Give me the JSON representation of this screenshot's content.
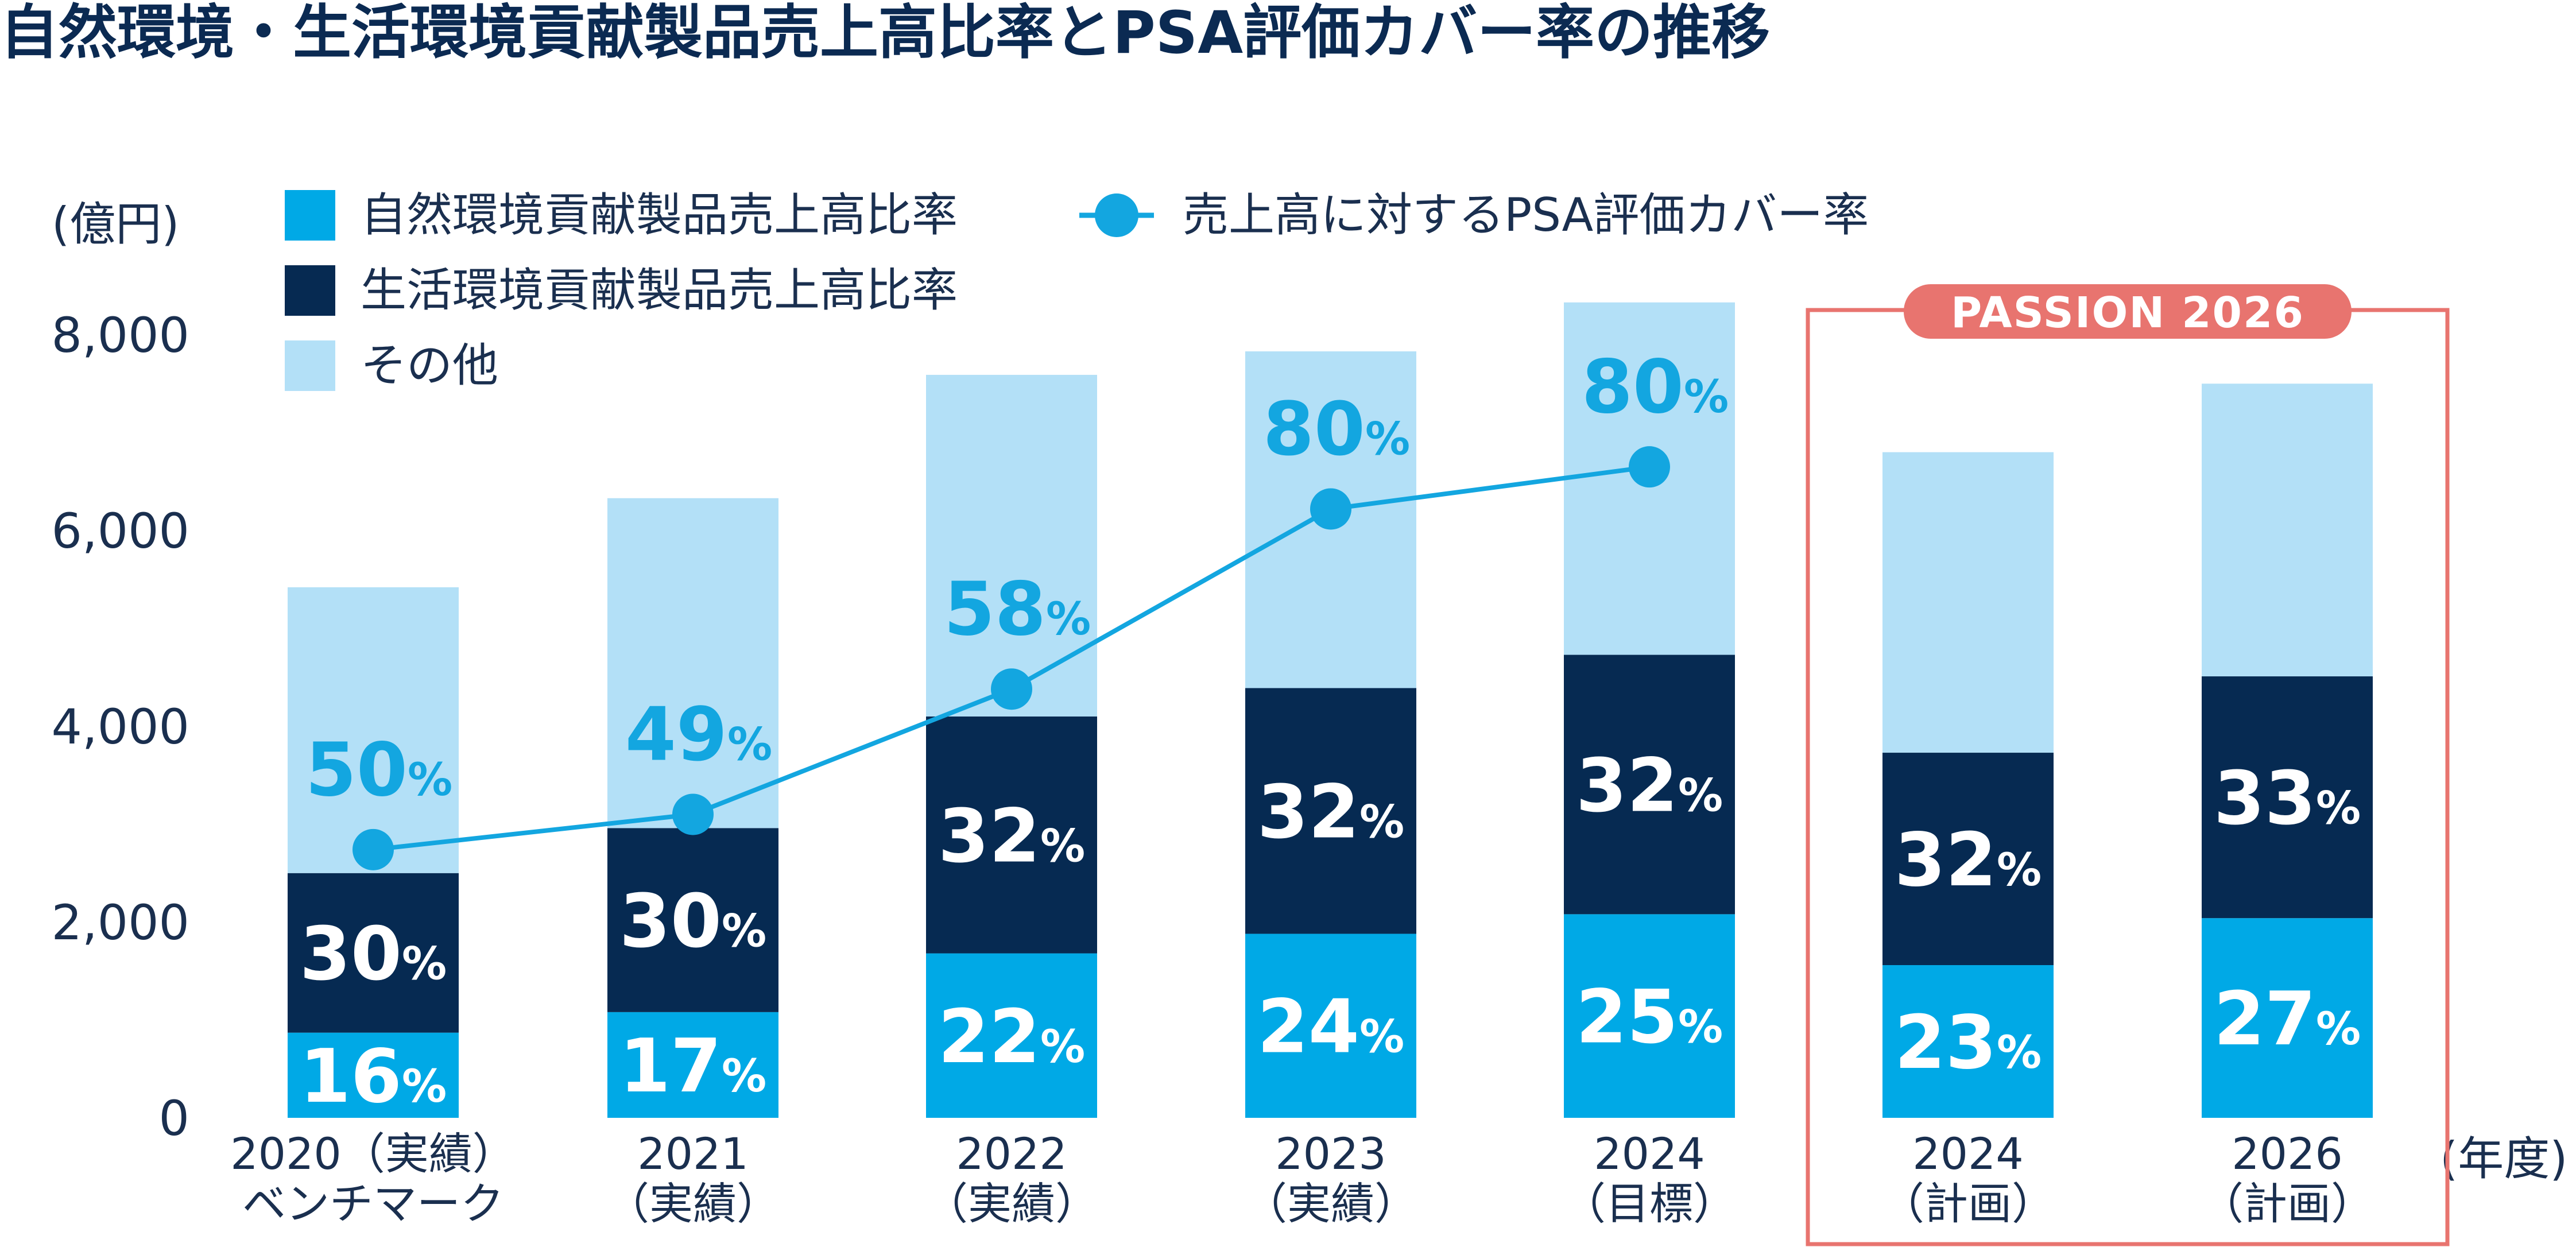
{
  "title": "自然環境・生活環境貢献製品売上高比率とPSA評価カバー率の推移",
  "colors": {
    "natural": "#00a9e6",
    "living": "#062a52",
    "other": "#b3e0f7",
    "line": "#13a6e0",
    "highlight": "#e8746f",
    "text": "#1a2f4f"
  },
  "chart_data": {
    "type": "bar",
    "stacked": true,
    "y_unit": "(億円)",
    "x_unit": "(年度)",
    "ylim": [
      0,
      8000
    ],
    "yticks": [
      "0",
      "2,000",
      "4,000",
      "6,000",
      "8,000"
    ],
    "ytick_values": [
      0,
      2000,
      4000,
      6000,
      8000
    ],
    "categories": [
      {
        "line1": "2020（実績）",
        "line2": "ベンチマーク"
      },
      {
        "line1": "2021",
        "line2": "（実績）"
      },
      {
        "line1": "2022",
        "line2": "（実績）"
      },
      {
        "line1": "2023",
        "line2": "（実績）"
      },
      {
        "line1": "2024",
        "line2": "（目標）"
      },
      {
        "line1": "2024",
        "line2": "（計画）"
      },
      {
        "line1": "2026",
        "line2": "（計画）"
      }
    ],
    "series": [
      {
        "name": "自然環境貢献製品売上高比率",
        "values": [
          870,
          1080,
          1680,
          1880,
          2080,
          1560,
          2040
        ],
        "labels": [
          "16",
          "17",
          "22",
          "24",
          "25",
          "23",
          "27"
        ]
      },
      {
        "name": "生活環境貢献製品売上高比率",
        "values": [
          1630,
          1880,
          2420,
          2510,
          2650,
          2170,
          2470
        ],
        "labels": [
          "30",
          "30",
          "32",
          "32",
          "32",
          "32",
          "33"
        ]
      },
      {
        "name": "その他",
        "values": [
          2920,
          3370,
          3490,
          3440,
          3600,
          3070,
          2990
        ],
        "labels": [
          "",
          "",
          "",
          "",
          "",
          "",
          ""
        ]
      }
    ],
    "line_series": {
      "name": "売上高に対するPSA評価カバー率",
      "values": [
        2740,
        3100,
        4380,
        6220,
        6650
      ],
      "labels": [
        "50",
        "49",
        "58",
        "80",
        "80"
      ]
    },
    "percent_sign": "%",
    "legend_position": "top-left",
    "highlight_box": {
      "label": "PASSION 2026",
      "categories": [
        5,
        6
      ]
    },
    "grid": false
  }
}
